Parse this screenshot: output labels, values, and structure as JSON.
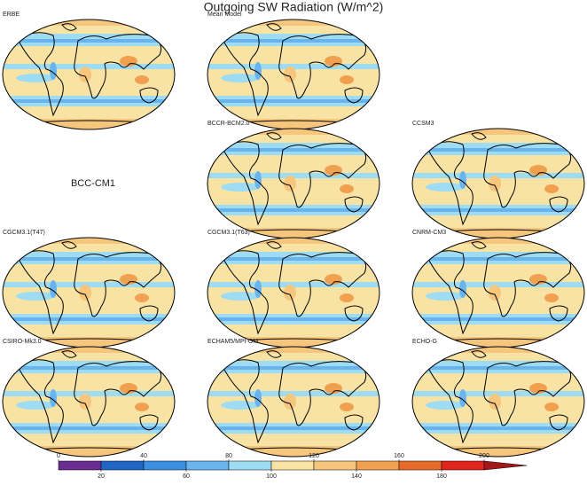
{
  "title": "Outgoing SW Radiation (W/m^2)",
  "panels": [
    {
      "label": "ERBE"
    },
    {
      "label": "Mean Model"
    },
    {
      "label": "BCCR-BCM2.0"
    },
    {
      "label": "CCSM3"
    },
    {
      "label": "CGCM3.1(T47)"
    },
    {
      "label": "CGCM3.1(T63)"
    },
    {
      "label": "CNRM-CM3"
    },
    {
      "label": "CSIRO-Mk3.0"
    },
    {
      "label": "ECHAM5/MPI-OM"
    },
    {
      "label": "ECHO-G"
    }
  ],
  "missing_model": "BCC-CM1",
  "colorbar": {
    "ticks": [
      0,
      20,
      40,
      60,
      80,
      100,
      120,
      140,
      160,
      180,
      200
    ],
    "colors": [
      "#6a2c91",
      "#2166c4",
      "#3c8fe0",
      "#6ab4ee",
      "#9ddcf2",
      "#f8e3a4",
      "#f6c67c",
      "#f0a04e",
      "#e76a2a",
      "#e0261c",
      "#a3171a"
    ]
  }
}
